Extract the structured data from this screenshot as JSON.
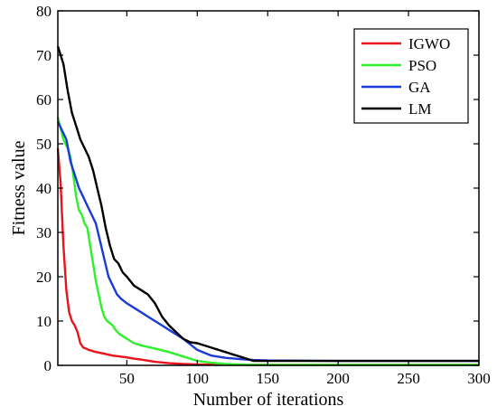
{
  "chart_data": {
    "type": "line",
    "title": "",
    "xlabel": "Number of iterations",
    "ylabel": "Fitness value",
    "xlim": [
      1,
      300
    ],
    "ylim": [
      0,
      80
    ],
    "xticks": [
      50,
      100,
      150,
      200,
      250,
      300
    ],
    "yticks": [
      0,
      10,
      20,
      30,
      40,
      50,
      60,
      70,
      80
    ],
    "grid": false,
    "legend_position": "top-right",
    "series": [
      {
        "name": "IGWO",
        "color": "#e8141b",
        "x": [
          1,
          3,
          5,
          7,
          9,
          11,
          13,
          15,
          17,
          19,
          21,
          23,
          25,
          27,
          30,
          33,
          36,
          40,
          45,
          50,
          55,
          60,
          70,
          80,
          90,
          100,
          120,
          150,
          200,
          250,
          300
        ],
        "y": [
          49,
          41,
          27,
          17,
          12,
          10,
          9,
          7.5,
          5,
          4,
          3.8,
          3.5,
          3.3,
          3.1,
          2.9,
          2.7,
          2.5,
          2.2,
          2,
          1.8,
          1.5,
          1.3,
          0.8,
          0.5,
          0.3,
          0.2,
          0.15,
          0.1,
          0.1,
          0.1,
          0.1
        ]
      },
      {
        "name": "PSO",
        "color": "#2cf12b",
        "x": [
          1,
          5,
          8,
          10,
          12,
          14,
          16,
          18,
          20,
          22,
          24,
          26,
          28,
          30,
          32,
          34,
          36,
          38,
          40,
          42,
          45,
          50,
          55,
          60,
          70,
          80,
          90,
          100,
          110,
          120,
          140,
          150,
          200,
          250,
          300
        ],
        "y": [
          56,
          51,
          49,
          47,
          43,
          38,
          35,
          34,
          32,
          31,
          27,
          23,
          19,
          16,
          13,
          11,
          10,
          9.5,
          9,
          8,
          7,
          6,
          5,
          4.5,
          3.8,
          3,
          2,
          1,
          0.6,
          0.3,
          0.1,
          0.1,
          0.1,
          0.1,
          0.1
        ]
      },
      {
        "name": "GA",
        "color": "#1b3bd8",
        "x": [
          1,
          4,
          7,
          10,
          13,
          16,
          19,
          22,
          25,
          28,
          31,
          34,
          37,
          40,
          43,
          46,
          50,
          55,
          60,
          65,
          70,
          75,
          80,
          90,
          100,
          110,
          120,
          130,
          140,
          150,
          200,
          250,
          300
        ],
        "y": [
          55,
          53,
          51,
          46,
          43,
          40,
          38,
          36,
          34,
          32,
          28,
          24,
          20,
          18,
          16,
          15,
          14,
          13,
          12,
          11,
          10,
          9,
          8,
          6,
          3.5,
          2.2,
          1.7,
          1.4,
          1.2,
          1.1,
          1,
          1,
          1
        ]
      },
      {
        "name": "LM",
        "color": "#000000",
        "x": [
          1,
          3,
          5,
          8,
          11,
          14,
          17,
          20,
          23,
          26,
          29,
          32,
          35,
          38,
          41,
          44,
          47,
          50,
          55,
          60,
          65,
          70,
          75,
          80,
          85,
          90,
          95,
          100,
          110,
          120,
          130,
          140,
          150,
          200,
          250,
          300
        ],
        "y": [
          72,
          70,
          68,
          62,
          57,
          54,
          51,
          49,
          47,
          44,
          40,
          36,
          31,
          27,
          24,
          23,
          21,
          20,
          18,
          17,
          16,
          14,
          11,
          9,
          7.5,
          6,
          5.2,
          5,
          4,
          3,
          2,
          1,
          1,
          1,
          1,
          1
        ]
      }
    ]
  }
}
